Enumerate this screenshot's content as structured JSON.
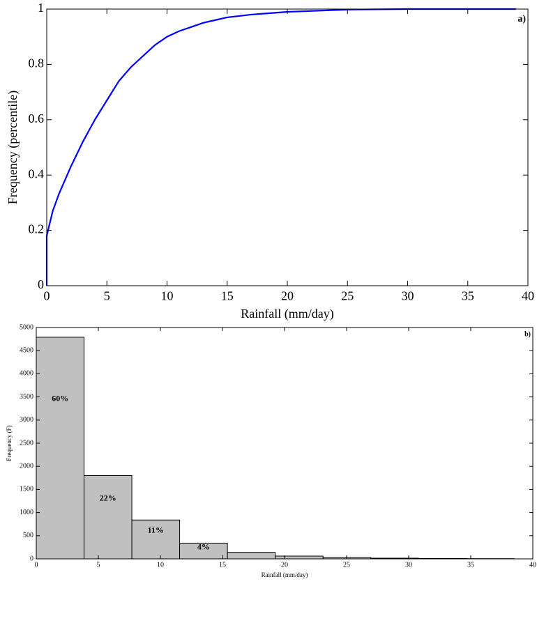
{
  "chart_data": [
    {
      "type": "line",
      "xlabel": "Rainfall (mm/day)",
      "ylabel": "Frequency (percentile)",
      "annotation": "a)",
      "color": "#0000ff",
      "x": [
        0,
        0,
        0.5,
        1,
        2,
        3,
        4,
        5,
        6,
        7,
        8,
        9,
        10,
        11,
        12,
        13,
        14,
        15,
        17,
        20,
        25,
        30,
        39
      ],
      "values": [
        0,
        0.18,
        0.27,
        0.33,
        0.43,
        0.52,
        0.6,
        0.67,
        0.74,
        0.79,
        0.83,
        0.87,
        0.9,
        0.92,
        0.935,
        0.95,
        0.96,
        0.97,
        0.98,
        0.99,
        0.998,
        1,
        1
      ],
      "xlim": [
        0,
        40
      ],
      "xticks": [
        0,
        5,
        10,
        15,
        20,
        25,
        30,
        35,
        40
      ],
      "ylim": [
        0,
        1
      ],
      "yticks": [
        0,
        0.2,
        0.4,
        0.6,
        0.8,
        1
      ]
    },
    {
      "type": "histogram",
      "xlabel": "Rainfall (mm/day)",
      "ylabel": "Frequency (F)",
      "annotation": "b)",
      "color": "#c0c0c0",
      "bins": [
        0,
        3.85,
        7.7,
        11.55,
        15.4,
        19.25,
        23.1,
        26.95,
        30.8,
        34.65,
        38.5
      ],
      "values": [
        4790,
        1800,
        840,
        340,
        140,
        60,
        30,
        15,
        8,
        5
      ],
      "bar_labels": [
        {
          "value": 60,
          "label": "60%"
        },
        {
          "value": 22,
          "label": "22%"
        },
        {
          "value": 11,
          "label": "11%"
        },
        {
          "value": 4,
          "label": "4%"
        }
      ],
      "xlim": [
        0,
        40
      ],
      "xticks": [
        0,
        5,
        10,
        15,
        20,
        25,
        30,
        35,
        40
      ],
      "ylim": [
        0,
        5000
      ],
      "yticks": [
        0,
        500,
        1000,
        1500,
        2000,
        2500,
        3000,
        3500,
        4000,
        4500,
        5000
      ]
    }
  ]
}
